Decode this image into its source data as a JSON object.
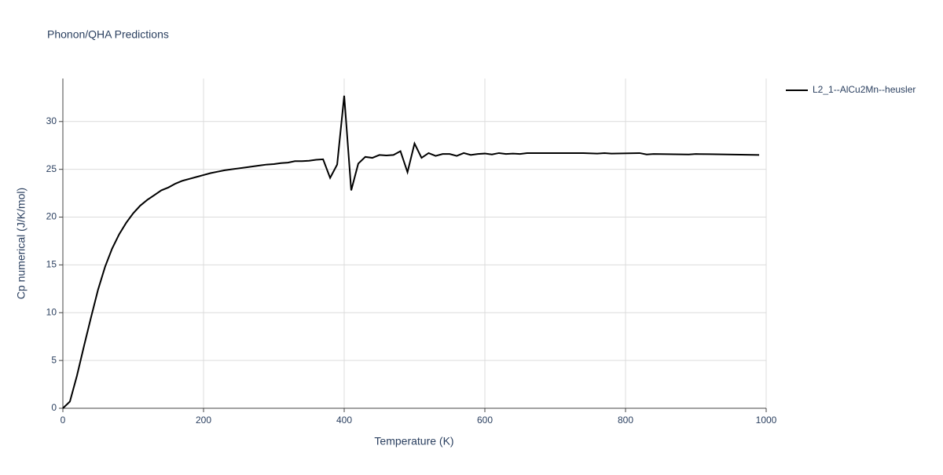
{
  "chart_data": {
    "type": "line",
    "title": "Phonon/QHA Predictions",
    "x_label": "Temperature (K)",
    "y_label": "Cp numerical (J/K/mol)",
    "x": [
      0,
      10,
      20,
      30,
      40,
      50,
      60,
      70,
      80,
      90,
      100,
      110,
      120,
      130,
      140,
      150,
      160,
      170,
      180,
      190,
      200,
      210,
      220,
      230,
      240,
      250,
      260,
      270,
      280,
      290,
      300,
      310,
      320,
      330,
      340,
      350,
      360,
      370,
      380,
      390,
      400,
      410,
      420,
      430,
      440,
      450,
      460,
      470,
      480,
      490,
      500,
      510,
      520,
      530,
      540,
      550,
      560,
      570,
      580,
      590,
      600,
      610,
      620,
      630,
      640,
      650,
      660,
      740,
      760,
      770,
      780,
      820,
      830,
      840,
      890,
      900,
      920,
      990
    ],
    "series": [
      {
        "name": "L2_1--AlCu2Mn--heusler",
        "color": "#000000",
        "values": [
          0,
          0.7,
          3.4,
          6.5,
          9.5,
          12.4,
          14.8,
          16.7,
          18.2,
          19.4,
          20.4,
          21.2,
          21.8,
          22.3,
          22.8,
          23.1,
          23.5,
          23.8,
          24.0,
          24.2,
          24.4,
          24.6,
          24.75,
          24.9,
          25.0,
          25.1,
          25.2,
          25.3,
          25.4,
          25.5,
          25.55,
          25.65,
          25.7,
          25.85,
          25.85,
          25.9,
          26.0,
          26.05,
          24.1,
          25.5,
          32.7,
          22.8,
          25.6,
          26.3,
          26.2,
          26.5,
          26.45,
          26.5,
          26.9,
          24.7,
          27.7,
          26.2,
          26.7,
          26.4,
          26.6,
          26.6,
          26.4,
          26.7,
          26.5,
          26.6,
          26.65,
          26.55,
          26.7,
          26.6,
          26.65,
          26.6,
          26.7,
          26.7,
          26.65,
          26.7,
          26.65,
          26.7,
          26.55,
          26.6,
          26.55,
          26.6,
          26.58,
          26.5
        ]
      }
    ],
    "xlim": [
      0,
      1000
    ],
    "xticks": [
      0,
      200,
      400,
      600,
      800,
      1000
    ],
    "ylim": [
      0,
      34.5
    ],
    "yticks": [
      0,
      5,
      10,
      15,
      20,
      25,
      30
    ],
    "grid": true,
    "legend": "right"
  }
}
